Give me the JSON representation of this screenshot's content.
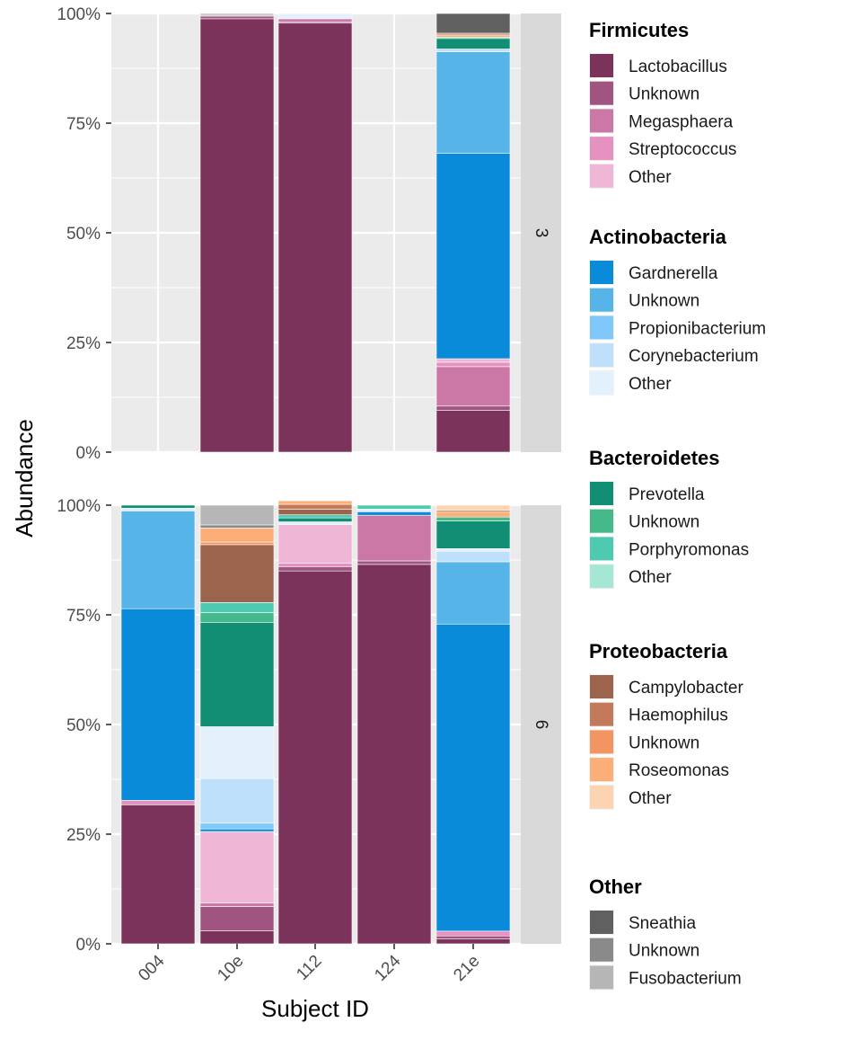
{
  "chart_data": {
    "type": "bar",
    "stacked": true,
    "faceted": true,
    "xlabel": "Subject ID",
    "ylabel": "Abundance",
    "ylim": [
      0,
      100
    ],
    "y_ticks": [
      "0%",
      "25%",
      "50%",
      "75%",
      "100%"
    ],
    "categories": [
      "004",
      "10e",
      "112",
      "124",
      "21e"
    ],
    "background": "#EBEBEB",
    "grid": true,
    "legend_position": "right",
    "legend_groups": [
      {
        "title": "Firmicutes",
        "items": [
          {
            "name": "Lactobacillus",
            "color": "#7B335C"
          },
          {
            "name": "Unknown",
            "color": "#A05480"
          },
          {
            "name": "Megasphaera",
            "color": "#CC78A6"
          },
          {
            "name": "Streptococcus",
            "color": "#E592C0"
          },
          {
            "name": "Other",
            "color": "#F0B6D6"
          }
        ]
      },
      {
        "title": "Actinobacteria",
        "items": [
          {
            "name": "Gardnerella",
            "color": "#0A8BDA"
          },
          {
            "name": "Unknown",
            "color": "#56B4E9"
          },
          {
            "name": "Propionibacterium",
            "color": "#80C8FA"
          },
          {
            "name": "Corynebacterium",
            "color": "#BEE0FA"
          },
          {
            "name": "Other",
            "color": "#E3F1FD"
          }
        ]
      },
      {
        "title": "Bacteroidetes",
        "items": [
          {
            "name": "Prevotella",
            "color": "#128E74"
          },
          {
            "name": "Unknown",
            "color": "#46B98A"
          },
          {
            "name": "Porphyromonas",
            "color": "#4ECAB0"
          },
          {
            "name": "Other",
            "color": "#A6E6D4"
          }
        ]
      },
      {
        "title": "Proteobacteria",
        "items": [
          {
            "name": "Campylobacter",
            "color": "#9C644D"
          },
          {
            "name": "Haemophilus",
            "color": "#C27A5A"
          },
          {
            "name": "Unknown",
            "color": "#F29563"
          },
          {
            "name": "Roseomonas",
            "color": "#FBAE77"
          },
          {
            "name": "Other",
            "color": "#FCD4B2"
          }
        ]
      },
      {
        "title": "Other",
        "items": [
          {
            "name": "Sneathia",
            "color": "#606060"
          },
          {
            "name": "Unknown",
            "color": "#8A8A8A"
          },
          {
            "name": "Fusobacterium",
            "color": "#B6B6B6"
          }
        ]
      }
    ],
    "panels": [
      {
        "label": "3",
        "bars": [
          {
            "category": "004",
            "segments": []
          },
          {
            "category": "10e",
            "segments": [
              {
                "taxon": "Lactobacillus",
                "color": "#7B335C",
                "value": 98.8
              },
              {
                "taxon": "Firmicutes Unknown",
                "color": "#A05480",
                "value": 0.6
              },
              {
                "taxon": "Sneathia",
                "color": "#606060",
                "value": 0.2
              },
              {
                "taxon": "Fusobacterium",
                "color": "#B6B6B6",
                "value": 0.4
              }
            ]
          },
          {
            "category": "112",
            "segments": [
              {
                "taxon": "Lactobacillus",
                "color": "#7B335C",
                "value": 97.8
              },
              {
                "taxon": "Firmicutes Unknown",
                "color": "#A05480",
                "value": 0.3
              },
              {
                "taxon": "Megasphaera",
                "color": "#CC78A6",
                "value": 0.7
              },
              {
                "taxon": "Actinobacteria Other",
                "color": "#E3F1FD",
                "value": 1.2
              }
            ]
          },
          {
            "category": "124",
            "segments": []
          },
          {
            "category": "21e",
            "segments": [
              {
                "taxon": "Lactobacillus",
                "color": "#7B335C",
                "value": 9.5
              },
              {
                "taxon": "Firmicutes Unknown",
                "color": "#A05480",
                "value": 1.0
              },
              {
                "taxon": "Megasphaera",
                "color": "#CC78A6",
                "value": 9.0
              },
              {
                "taxon": "Streptococcus",
                "color": "#E592C0",
                "value": 1.0
              },
              {
                "taxon": "Firmicutes Other",
                "color": "#F0B6D6",
                "value": 0.8
              },
              {
                "taxon": "Gardnerella",
                "color": "#0A8BDA",
                "value": 46.8
              },
              {
                "taxon": "Actinobacteria Unknown",
                "color": "#56B4E9",
                "value": 23.2
              },
              {
                "taxon": "Corynebacterium",
                "color": "#BEE0FA",
                "value": 0.6
              },
              {
                "taxon": "Prevotella",
                "color": "#128E74",
                "value": 2.4
              },
              {
                "taxon": "Porphyromonas",
                "color": "#4ECAB0",
                "value": 0.3
              },
              {
                "taxon": "Roseomonas",
                "color": "#FBAE77",
                "value": 0.5
              },
              {
                "taxon": "Haemophilus",
                "color": "#C27A5A",
                "value": 0.4
              },
              {
                "taxon": "Sneathia",
                "color": "#606060",
                "value": 4.5
              }
            ]
          }
        ]
      },
      {
        "label": "6",
        "bars": [
          {
            "category": "004",
            "segments": [
              {
                "taxon": "Lactobacillus",
                "color": "#7B335C",
                "value": 31.7
              },
              {
                "taxon": "Streptococcus",
                "color": "#E592C0",
                "value": 1.0
              },
              {
                "taxon": "Gardnerella",
                "color": "#0A8BDA",
                "value": 43.7
              },
              {
                "taxon": "Actinobacteria Unknown",
                "color": "#56B4E9",
                "value": 22.3
              },
              {
                "taxon": "Actinobacteria Other",
                "color": "#E3F1FD",
                "value": 0.6
              },
              {
                "taxon": "Prevotella",
                "color": "#128E74",
                "value": 0.7
              }
            ]
          },
          {
            "category": "10e",
            "segments": [
              {
                "taxon": "Lactobacillus",
                "color": "#7B335C",
                "value": 3.0
              },
              {
                "taxon": "Firmicutes Unknown",
                "color": "#A05480",
                "value": 5.5
              },
              {
                "taxon": "Megasphaera",
                "color": "#CC78A6",
                "value": 0.8
              },
              {
                "taxon": "Firmicutes Other",
                "color": "#F0B6D6",
                "value": 16.3
              },
              {
                "taxon": "Gardnerella",
                "color": "#0A8BDA",
                "value": 0.6
              },
              {
                "taxon": "Propionibacterium",
                "color": "#80C8FA",
                "value": 1.3
              },
              {
                "taxon": "Corynebacterium",
                "color": "#BEE0FA",
                "value": 10.2
              },
              {
                "taxon": "Actinobacteria Other",
                "color": "#E3F1FD",
                "value": 11.8
              },
              {
                "taxon": "Prevotella",
                "color": "#128E74",
                "value": 23.8
              },
              {
                "taxon": "Bacteroidetes Unknown",
                "color": "#46B98A",
                "value": 2.2
              },
              {
                "taxon": "Porphyromonas",
                "color": "#4ECAB0",
                "value": 2.3
              },
              {
                "taxon": "Campylobacter",
                "color": "#9C644D",
                "value": 13.2
              },
              {
                "taxon": "Proteobacteria Unknown",
                "color": "#F29563",
                "value": 0.6
              },
              {
                "taxon": "Roseomonas",
                "color": "#FBAE77",
                "value": 3.2
              },
              {
                "taxon": "Other Unknown",
                "color": "#8A8A8A",
                "value": 0.7
              },
              {
                "taxon": "Fusobacterium",
                "color": "#B6B6B6",
                "value": 4.5
              }
            ]
          },
          {
            "category": "112",
            "segments": [
              {
                "taxon": "Lactobacillus",
                "color": "#7B335C",
                "value": 85.0
              },
              {
                "taxon": "Firmicutes Unknown",
                "color": "#A05480",
                "value": 1.0
              },
              {
                "taxon": "Streptococcus",
                "color": "#E592C0",
                "value": 0.8
              },
              {
                "taxon": "Firmicutes Other",
                "color": "#F0B6D6",
                "value": 8.8
              },
              {
                "taxon": "Actinobacteria Other",
                "color": "#E3F1FD",
                "value": 0.6
              },
              {
                "taxon": "Prevotella",
                "color": "#128E74",
                "value": 0.9
              },
              {
                "taxon": "Porphyromonas",
                "color": "#4ECAB0",
                "value": 0.7
              },
              {
                "taxon": "Campylobacter",
                "color": "#9C644D",
                "value": 1.3
              },
              {
                "taxon": "Haemophilus",
                "color": "#C27A5A",
                "value": 1.1
              },
              {
                "taxon": "Roseomonas",
                "color": "#FBAE77",
                "value": 0.8
              }
            ]
          },
          {
            "category": "124",
            "segments": [
              {
                "taxon": "Lactobacillus",
                "color": "#7B335C",
                "value": 86.5
              },
              {
                "taxon": "Firmicutes Unknown",
                "color": "#A05480",
                "value": 0.8
              },
              {
                "taxon": "Megasphaera",
                "color": "#CC78A6",
                "value": 10.4
              },
              {
                "taxon": "Gardnerella",
                "color": "#0A8BDA",
                "value": 0.8
              },
              {
                "taxon": "Actinobacteria Other",
                "color": "#E3F1FD",
                "value": 0.6
              },
              {
                "taxon": "Porphyromonas",
                "color": "#4ECAB0",
                "value": 0.9
              }
            ]
          },
          {
            "category": "21e",
            "segments": [
              {
                "taxon": "Lactobacillus",
                "color": "#7B335C",
                "value": 1.1
              },
              {
                "taxon": "Firmicutes Unknown",
                "color": "#A05480",
                "value": 0.7
              },
              {
                "taxon": "Streptococcus",
                "color": "#E592C0",
                "value": 1.1
              },
              {
                "taxon": "Gardnerella",
                "color": "#0A8BDA",
                "value": 70.0
              },
              {
                "taxon": "Actinobacteria Unknown",
                "color": "#56B4E9",
                "value": 14.2
              },
              {
                "taxon": "Corynebacterium",
                "color": "#BEE0FA",
                "value": 2.4
              },
              {
                "taxon": "Actinobacteria Other",
                "color": "#E3F1FD",
                "value": 0.6
              },
              {
                "taxon": "Prevotella",
                "color": "#128E74",
                "value": 6.3
              },
              {
                "taxon": "Bacteroidetes Unknown",
                "color": "#46B98A",
                "value": 0.9
              },
              {
                "taxon": "Roseomonas",
                "color": "#FBAE77",
                "value": 1.1
              },
              {
                "taxon": "Haemophilus",
                "color": "#C27A5A",
                "value": 0.4
              },
              {
                "taxon": "Proteobacteria Other",
                "color": "#FCD4B2",
                "value": 1.2
              }
            ]
          }
        ]
      }
    ]
  }
}
